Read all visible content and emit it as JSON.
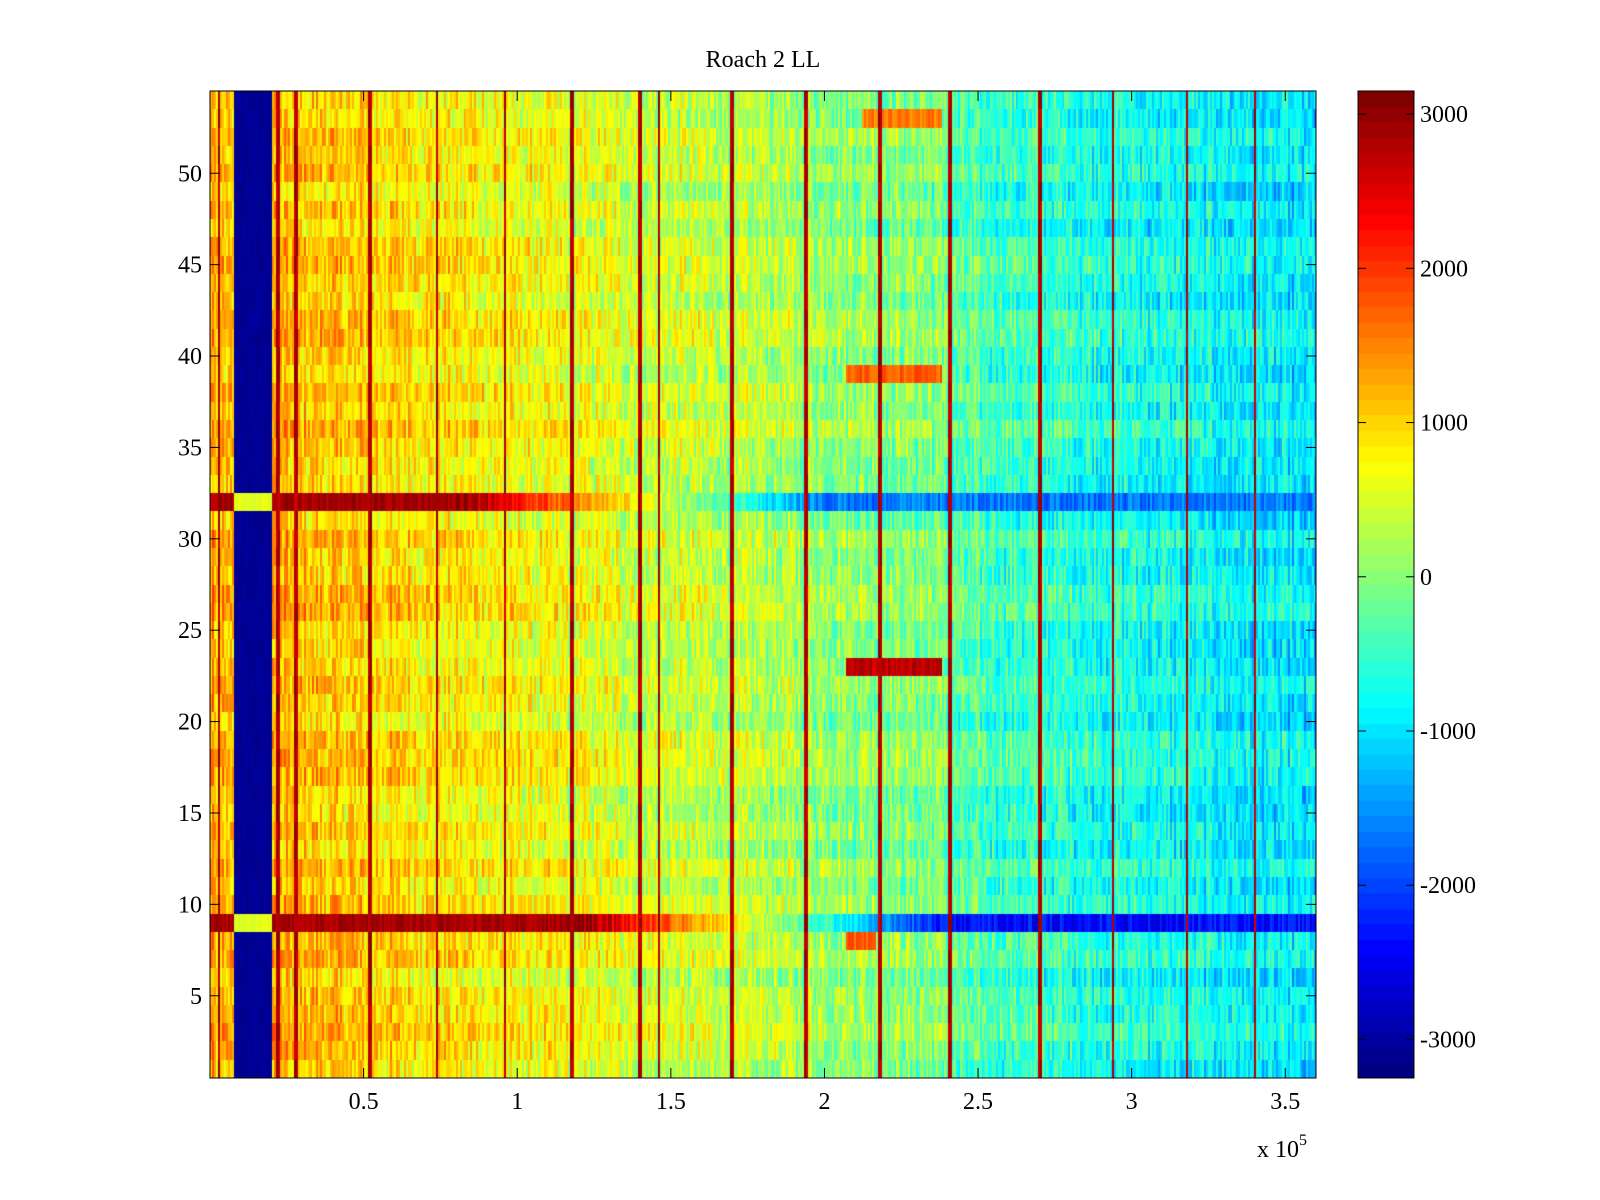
{
  "chart_data": {
    "type": "heatmap",
    "title": "Roach 2 LL",
    "xlabel": "",
    "ylabel": "",
    "x_multiplier_label": "x 10",
    "x_multiplier_exponent": "5",
    "xlim": [
      0,
      360000
    ],
    "ylim": [
      0.5,
      54.5
    ],
    "x_ticks": [
      {
        "value": 50000,
        "label": "0.5"
      },
      {
        "value": 100000,
        "label": "1"
      },
      {
        "value": 150000,
        "label": "1.5"
      },
      {
        "value": 200000,
        "label": "2"
      },
      {
        "value": 250000,
        "label": "2.5"
      },
      {
        "value": 300000,
        "label": "3"
      },
      {
        "value": 350000,
        "label": "3.5"
      }
    ],
    "y_ticks": [
      {
        "value": 5,
        "label": "5"
      },
      {
        "value": 10,
        "label": "10"
      },
      {
        "value": 15,
        "label": "15"
      },
      {
        "value": 20,
        "label": "20"
      },
      {
        "value": 25,
        "label": "25"
      },
      {
        "value": 30,
        "label": "30"
      },
      {
        "value": 35,
        "label": "35"
      },
      {
        "value": 40,
        "label": "40"
      },
      {
        "value": 45,
        "label": "45"
      },
      {
        "value": 50,
        "label": "50"
      }
    ],
    "colorbar": {
      "colormap": "jet",
      "range": [
        -3250,
        3150
      ],
      "ticks": [
        {
          "value": 3000,
          "label": "3000"
        },
        {
          "value": 2000,
          "label": "2000"
        },
        {
          "value": 1000,
          "label": "1000"
        },
        {
          "value": 0,
          "label": "0"
        },
        {
          "value": -1000,
          "label": "-1000"
        },
        {
          "value": -2000,
          "label": "-2000"
        },
        {
          "value": -3000,
          "label": "-3000"
        }
      ]
    },
    "rows": 54,
    "features": {
      "low_band_x": [
        8000,
        20000
      ],
      "low_band_value": -3200,
      "low_band_bright_rows": [
        9,
        32
      ],
      "bright_rows": [
        {
          "row": 9,
          "description_value_left": 3100,
          "value_right": -2400,
          "switch_x": 120000
        },
        {
          "row": 32,
          "value_left": 3100,
          "value_right": -1700,
          "switch_x": 80000
        }
      ],
      "blob_rows": [
        {
          "row": 23,
          "x_range": [
            207000,
            238000
          ],
          "value": 3000
        },
        {
          "row": 39,
          "x_range": [
            207000,
            238000
          ],
          "value": 2000
        },
        {
          "row": 53,
          "x_range": [
            212000,
            238000
          ],
          "value": 1800
        },
        {
          "row": 8,
          "x_range": [
            207000,
            217000
          ],
          "value": 2000
        }
      ],
      "vertical_lines_x": [
        3000,
        22000,
        28000,
        52000,
        74000,
        96000,
        118000,
        140000,
        146000,
        170000,
        194000,
        218000,
        241000,
        270000,
        294000,
        318000,
        340000
      ],
      "trend": {
        "value_at_xmin": 1300,
        "value_at_xmax": -800
      }
    }
  }
}
